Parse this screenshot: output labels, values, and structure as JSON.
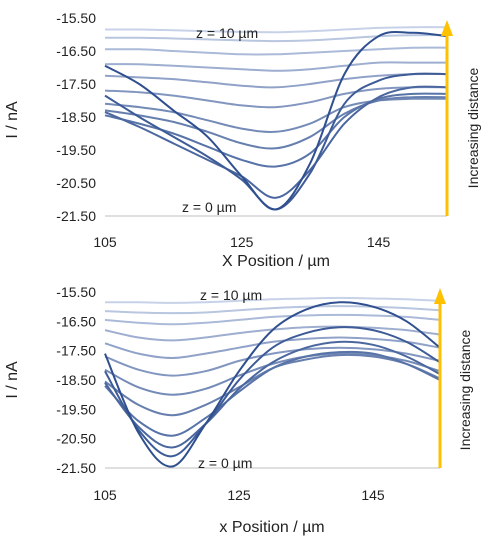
{
  "chart_data": [
    {
      "type": "line",
      "xlabel": "X Position / µm",
      "ylabel": "I / nA",
      "xlim": [
        105,
        155
      ],
      "ylim": [
        -21.5,
        -15.5
      ],
      "xticks": [
        105,
        125,
        145
      ],
      "xtick_labels": [
        "105",
        "125",
        "145"
      ],
      "yticks": [
        -15.5,
        -16.5,
        -17.5,
        -18.5,
        -19.5,
        -20.5,
        -21.5
      ],
      "ytick_labels": [
        "-15.50",
        "-16.50",
        "-17.50",
        "-18.50",
        "-19.50",
        "-20.50",
        "-21.50"
      ],
      "grid": false,
      "annotations": {
        "z_top": "z = 10 µm",
        "z_bottom": "z = 0 µm",
        "arrow_label": "Increasing distance"
      },
      "colors": {
        "far": "#c7d2e8",
        "near": "#2f4f8f",
        "arrow": "#ffc000"
      },
      "x": [
        105,
        110,
        115,
        120,
        125,
        130,
        135,
        140,
        145,
        150,
        155
      ],
      "series": [
        {
          "values": [
            -16.95,
            -17.5,
            -18.3,
            -19.1,
            -20.3,
            -21.3,
            -19.9,
            -17.2,
            -16.05,
            -15.95,
            -16.05
          ]
        },
        {
          "values": [
            -17.85,
            -18.5,
            -19.1,
            -19.7,
            -20.4,
            -21.3,
            -20.2,
            -18.1,
            -17.4,
            -17.2,
            -17.2
          ]
        },
        {
          "values": [
            -18.35,
            -18.8,
            -19.3,
            -19.8,
            -20.3,
            -20.95,
            -20.1,
            -18.7,
            -17.9,
            -17.6,
            -17.6
          ]
        },
        {
          "values": [
            -18.45,
            -18.7,
            -19.0,
            -19.4,
            -19.8,
            -20.0,
            -19.6,
            -18.5,
            -17.95,
            -17.8,
            -17.8
          ]
        },
        {
          "values": [
            -18.3,
            -18.45,
            -18.65,
            -18.95,
            -19.3,
            -19.45,
            -19.1,
            -18.4,
            -18.0,
            -17.9,
            -17.9
          ]
        },
        {
          "values": [
            -18.1,
            -18.2,
            -18.35,
            -18.6,
            -18.85,
            -18.95,
            -18.7,
            -18.2,
            -18.0,
            -17.95,
            -17.95
          ]
        },
        {
          "values": [
            -17.7,
            -17.75,
            -17.85,
            -18.0,
            -18.15,
            -18.2,
            -18.05,
            -17.8,
            -17.65,
            -17.6,
            -17.6
          ]
        },
        {
          "values": [
            -17.25,
            -17.3,
            -17.35,
            -17.45,
            -17.55,
            -17.6,
            -17.5,
            -17.35,
            -17.25,
            -17.2,
            -17.2
          ]
        },
        {
          "values": [
            -16.9,
            -16.9,
            -16.95,
            -17.0,
            -17.05,
            -17.1,
            -17.05,
            -16.95,
            -16.85,
            -16.85,
            -16.85
          ]
        },
        {
          "values": [
            -16.45,
            -16.45,
            -16.5,
            -16.55,
            -16.6,
            -16.6,
            -16.55,
            -16.5,
            -16.45,
            -16.4,
            -16.4
          ]
        },
        {
          "values": [
            -16.1,
            -16.1,
            -16.12,
            -16.15,
            -16.18,
            -16.2,
            -16.18,
            -16.12,
            -16.05,
            -16.02,
            -16.02
          ]
        },
        {
          "values": [
            -15.85,
            -15.85,
            -15.87,
            -15.9,
            -15.92,
            -15.93,
            -15.9,
            -15.85,
            -15.8,
            -15.78,
            -15.78
          ]
        }
      ]
    },
    {
      "type": "line",
      "xlabel": "x Position / µm",
      "ylabel": "I / nA",
      "xlim": [
        105,
        155
      ],
      "ylim": [
        -21.5,
        -15.5
      ],
      "xticks": [
        105,
        125,
        145
      ],
      "xtick_labels": [
        "105",
        "125",
        "145"
      ],
      "yticks": [
        -15.5,
        -16.5,
        -17.5,
        -18.5,
        -19.5,
        -20.5,
        -21.5
      ],
      "ytick_labels": [
        "-15.50",
        "-16.50",
        "-17.50",
        "-18.50",
        "-19.50",
        "-20.50",
        "-21.50"
      ],
      "grid": false,
      "annotations": {
        "z_top": "z = 10 µm",
        "z_bottom": "z = 0 µm",
        "arrow_label": "Increasing distance"
      },
      "colors": {
        "far": "#c7d2e8",
        "near": "#2f4f8f",
        "arrow": "#ffc000"
      },
      "x": [
        105,
        110,
        115,
        120,
        125,
        130,
        135,
        140,
        145,
        150,
        155
      ],
      "series": [
        {
          "values": [
            -17.6,
            -20.3,
            -21.45,
            -20.0,
            -18.2,
            -16.8,
            -16.1,
            -15.85,
            -16.0,
            -16.5,
            -17.4
          ]
        },
        {
          "values": [
            -18.2,
            -20.2,
            -21.1,
            -20.0,
            -18.5,
            -17.4,
            -16.9,
            -16.7,
            -16.8,
            -17.2,
            -17.9
          ]
        },
        {
          "values": [
            -18.6,
            -20.1,
            -20.8,
            -20.0,
            -18.8,
            -17.9,
            -17.4,
            -17.2,
            -17.3,
            -17.7,
            -18.3
          ]
        },
        {
          "values": [
            -18.7,
            -19.9,
            -20.4,
            -19.8,
            -18.9,
            -18.1,
            -17.7,
            -17.55,
            -17.6,
            -17.95,
            -18.5
          ]
        },
        {
          "values": [
            -18.55,
            -19.35,
            -19.7,
            -19.35,
            -18.75,
            -18.1,
            -17.8,
            -17.65,
            -17.7,
            -17.95,
            -18.45
          ]
        },
        {
          "values": [
            -18.15,
            -18.75,
            -19.0,
            -18.8,
            -18.35,
            -17.95,
            -17.7,
            -17.6,
            -17.65,
            -17.85,
            -18.2
          ]
        },
        {
          "values": [
            -17.7,
            -18.15,
            -18.35,
            -18.2,
            -17.85,
            -17.6,
            -17.45,
            -17.4,
            -17.45,
            -17.6,
            -17.85
          ]
        },
        {
          "values": [
            -17.25,
            -17.6,
            -17.75,
            -17.6,
            -17.4,
            -17.2,
            -17.1,
            -17.05,
            -17.1,
            -17.2,
            -17.4
          ]
        },
        {
          "values": [
            -16.8,
            -17.05,
            -17.15,
            -17.05,
            -16.9,
            -16.78,
            -16.7,
            -16.68,
            -16.72,
            -16.8,
            -16.95
          ]
        },
        {
          "values": [
            -16.45,
            -16.55,
            -16.6,
            -16.55,
            -16.45,
            -16.35,
            -16.3,
            -16.28,
            -16.3,
            -16.35,
            -16.45
          ]
        },
        {
          "values": [
            -16.15,
            -16.2,
            -16.22,
            -16.2,
            -16.12,
            -16.05,
            -16.0,
            -15.98,
            -16.0,
            -16.05,
            -16.12
          ]
        },
        {
          "values": [
            -15.85,
            -15.85,
            -15.87,
            -15.85,
            -15.8,
            -15.75,
            -15.72,
            -15.7,
            -15.72,
            -15.75,
            -15.8
          ]
        }
      ]
    }
  ]
}
